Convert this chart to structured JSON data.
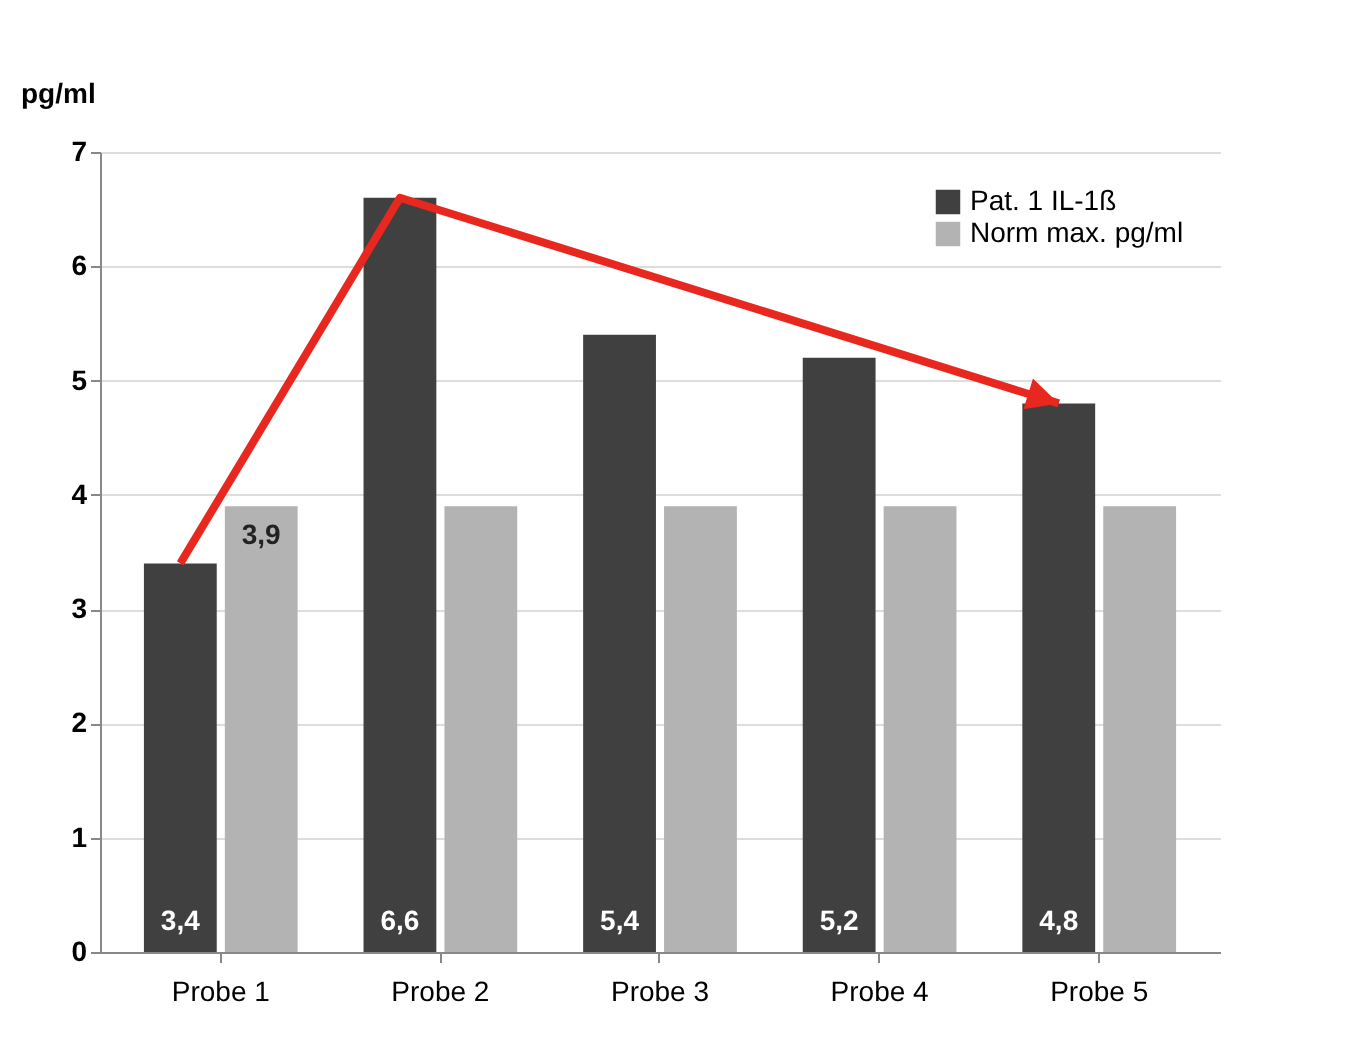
{
  "chart_data": {
    "type": "bar",
    "ylabel": "pg/ml",
    "categories": [
      "Probe 1",
      "Probe 2",
      "Probe 3",
      "Probe 4",
      "Probe 5"
    ],
    "series": [
      {
        "name": "Pat. 1 IL-1ß",
        "color": "#404040",
        "values": [
          3.4,
          6.6,
          5.4,
          5.2,
          4.8
        ],
        "value_labels": [
          "3,4",
          "6,6",
          "5,4",
          "5,2",
          "4,8"
        ]
      },
      {
        "name": "Norm max. pg/ml",
        "color": "#b3b3b3",
        "values": [
          3.9,
          3.9,
          3.9,
          3.9,
          3.9
        ],
        "value_labels": [
          "3,9",
          null,
          null,
          null,
          null
        ]
      }
    ],
    "ylim": [
      0,
      7
    ],
    "yticks": [
      0,
      1,
      2,
      3,
      4,
      5,
      6,
      7
    ],
    "grid": "y",
    "legend": "top right"
  }
}
